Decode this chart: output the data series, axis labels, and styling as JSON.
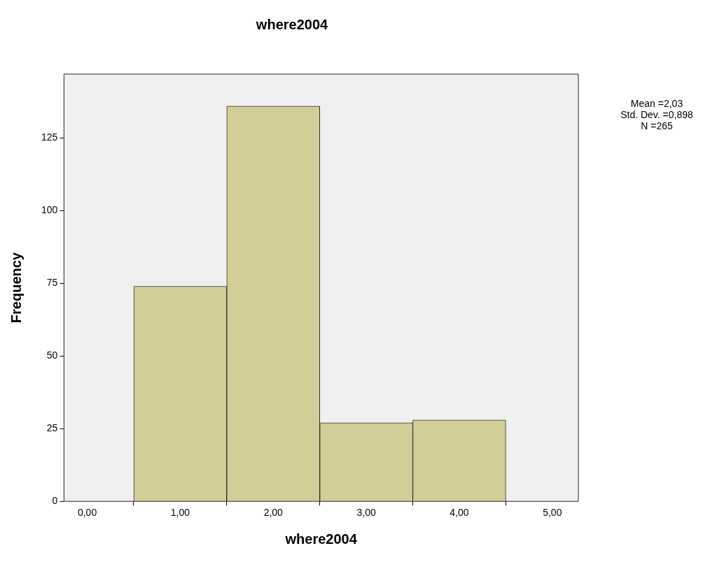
{
  "chart_data": {
    "type": "histogram",
    "title": "where2004",
    "xlabel": "where2004",
    "ylabel": "Frequency",
    "bins": [
      0.5,
      1.5,
      2.5,
      3.5,
      4.5
    ],
    "values": [
      74,
      136,
      27,
      28
    ],
    "color": "#d3ce97",
    "xlim": [
      -0.25,
      5.28
    ],
    "xticks": [
      {
        "value": 0,
        "label": "0,00"
      },
      {
        "value": 1,
        "label": "1,00"
      },
      {
        "value": 2,
        "label": "2,00"
      },
      {
        "value": 3,
        "label": "3,00"
      },
      {
        "value": 4,
        "label": "4,00"
      },
      {
        "value": 5,
        "label": "5,00"
      }
    ],
    "ylim": [
      0,
      147
    ],
    "yticks": [
      0,
      25,
      50,
      75,
      100,
      125
    ],
    "annotations": [
      "Mean =2,03",
      "Std. Dev. =0,898",
      "N =265"
    ]
  }
}
